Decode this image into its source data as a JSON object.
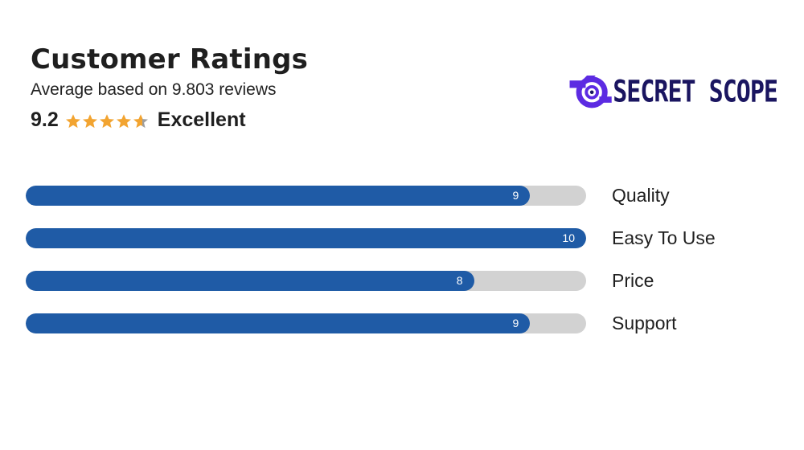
{
  "header": {
    "title": "Customer Ratings",
    "subtitle": "Average based on 9.803 reviews",
    "score": "9.2",
    "verdict": "Excellent",
    "stars": {
      "rating": 4.6,
      "max": 5,
      "filled_color": "#f2a431",
      "empty_color": "#9e9e9e"
    }
  },
  "logo": {
    "text": "SECRET SCOPE",
    "mark_icon": "eye-lens-icon",
    "colors": {
      "primary": "#5c2be2",
      "dark": "#1a1560"
    }
  },
  "ratings": {
    "max": 10,
    "fill_color": "#1f5ba6",
    "track_color": "#d2d2d2",
    "items": [
      {
        "label": "Quality",
        "value": 9,
        "value_text": "9"
      },
      {
        "label": "Easy To Use",
        "value": 10,
        "value_text": "10"
      },
      {
        "label": "Price",
        "value": 8,
        "value_text": "8"
      },
      {
        "label": "Support",
        "value": 9,
        "value_text": "9"
      }
    ]
  }
}
